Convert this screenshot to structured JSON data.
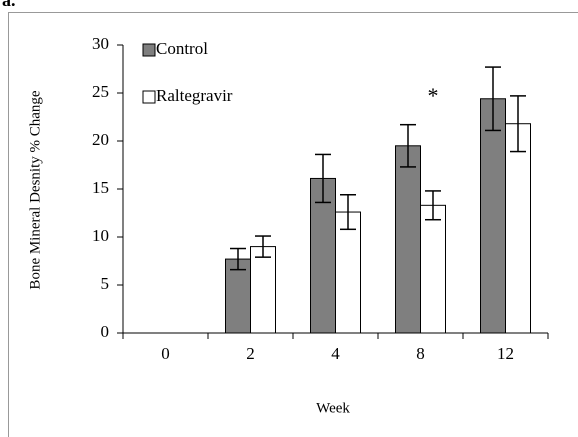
{
  "chart_data": {
    "type": "bar",
    "panel_label": "a.",
    "y_label": "Bone Mineral Desnity % Change",
    "x_label": "Week",
    "categories": [
      "0",
      "2",
      "4",
      "8",
      "12"
    ],
    "series": [
      {
        "name": "Control",
        "color": "#7f7f7f",
        "values": [
          0,
          7.7,
          16.1,
          19.5,
          24.4
        ],
        "errors": [
          0,
          1.1,
          2.5,
          2.2,
          3.3
        ]
      },
      {
        "name": "Raltegravir",
        "color": "#ffffff",
        "values": [
          0,
          9.0,
          12.6,
          13.3,
          21.8
        ],
        "errors": [
          0,
          1.1,
          1.8,
          1.5,
          2.9
        ]
      }
    ],
    "annotation": {
      "text": "*",
      "category": 3
    },
    "ylim": [
      0,
      30
    ],
    "yticks": [
      0,
      5,
      10,
      15,
      20,
      25,
      30
    ],
    "legend": "top-left"
  }
}
